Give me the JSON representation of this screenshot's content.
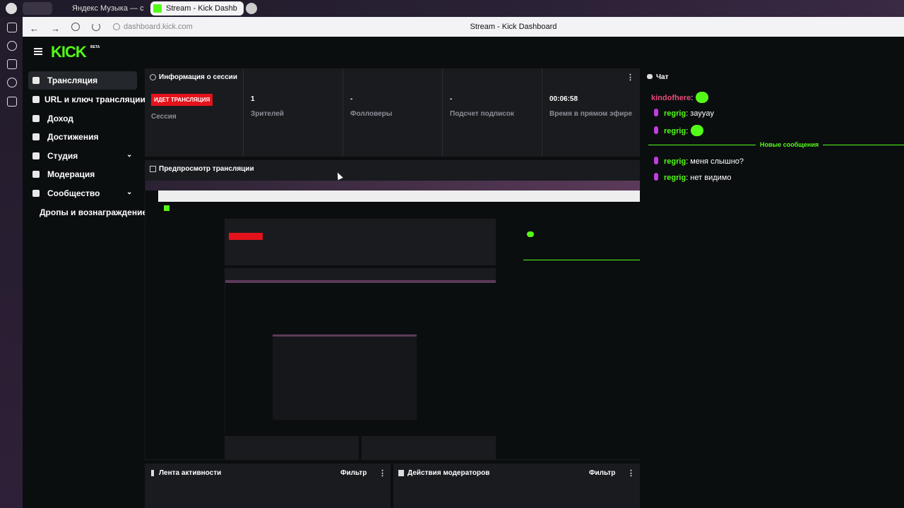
{
  "browser": {
    "tabs": [
      "Яндекс Музыка — с",
      "Stream - Kick Dashb"
    ],
    "address": "dashboard.kick.com",
    "page_title": "Stream - Kick Dashboard"
  },
  "header": {
    "logo": "KICK",
    "badge": "BETA"
  },
  "sidebar": {
    "items": [
      "Трансляция",
      "URL и ключ трансляции",
      "Доход",
      "Достижения",
      "Студия",
      "Модерация",
      "Сообщество",
      "Дропы и вознаграждение"
    ]
  },
  "session": {
    "title": "Информация о сессии",
    "status": "ИДЕТ ТРАНСЛЯЦИЯ",
    "status_label": "Сессия",
    "stats": [
      {
        "value": 1,
        "label": "Зрителей"
      },
      {
        "value": "-",
        "label": "Фолловеры"
      },
      {
        "value": "-",
        "label": "Подсчет подписок"
      },
      {
        "value": "00:06:58",
        "label": "Время в прямом эфире"
      }
    ]
  },
  "preview": {
    "title": "Предпросмотр трансляции"
  },
  "chat": {
    "title": "Чат",
    "messages": [
      {
        "user": "kindofhere",
        "text": ":"
      },
      {
        "user": "regrig",
        "text": ": зауyay"
      },
      {
        "user": "regrig",
        "text": ":"
      },
      {
        "user": "regrig",
        "text": ": меня слышно?"
      },
      {
        "user": "regrig",
        "text": ": нет видимо"
      }
    ],
    "divider": "Новые сообщения"
  },
  "panels": [
    {
      "title": "Лента активности",
      "filter": "Фильтр"
    },
    {
      "title": "Действия модераторов",
      "filter": "Фильтр"
    }
  ]
}
